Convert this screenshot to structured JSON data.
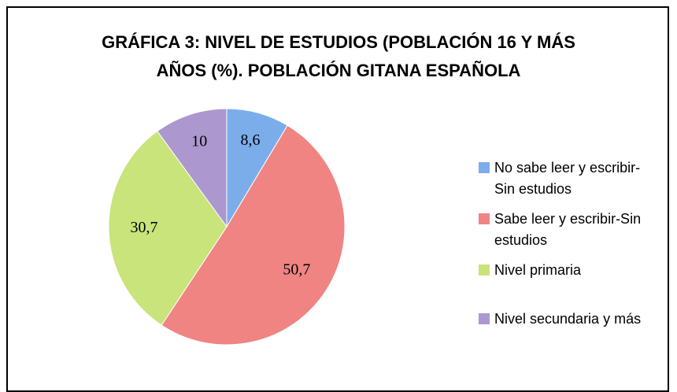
{
  "chart_data": {
    "type": "pie",
    "title": "GRÁFICA 3: NIVEL DE ESTUDIOS (POBLACIÓN 16 Y MÁS AÑOS (%). POBLACIÓN GITANA ESPAÑOLA",
    "categories": [
      "No sabe leer y escribir-Sin estudios",
      "Sabe leer y escribir-Sin estudios",
      "Nivel primaria",
      "Nivel secundaria y más"
    ],
    "values": [
      8.6,
      50.7,
      30.7,
      10
    ],
    "value_labels": [
      "8,6",
      "50,7",
      "30,7",
      "10"
    ],
    "colors": [
      "#7badea",
      "#ef8482",
      "#c8e47a",
      "#ad97cf"
    ],
    "legend": "right"
  }
}
